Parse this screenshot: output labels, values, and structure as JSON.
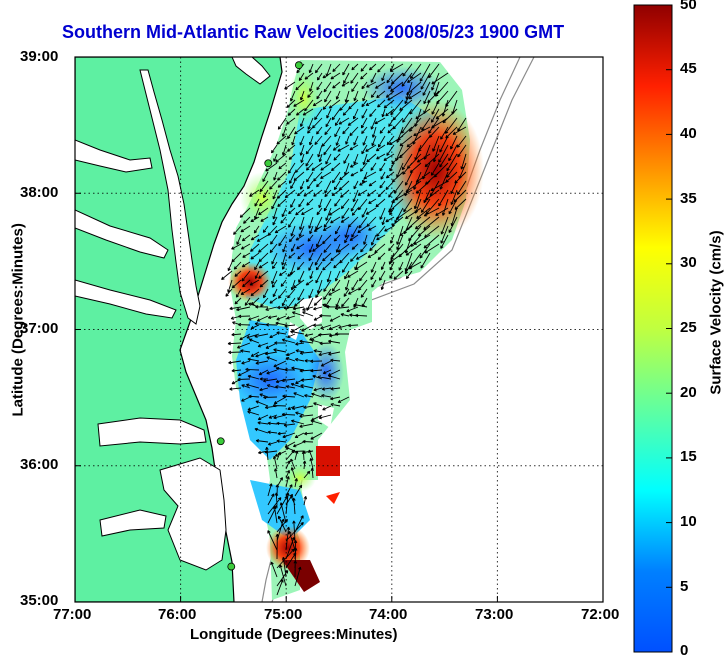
{
  "title": "Southern Mid-Atlantic Raw Velocities 2008/05/23 1900 GMT",
  "axes": {
    "xlabel": "Longitude (Degrees:Minutes)",
    "ylabel": "Latitude (Degrees:Minutes)",
    "xticks": [
      "77:00",
      "76:00",
      "75:00",
      "74:00",
      "73:00",
      "72:00"
    ],
    "yticks": [
      "39:00",
      "38:00",
      "37:00",
      "36:00",
      "35:00"
    ],
    "xlim": [
      -77,
      -72
    ],
    "ylim": [
      35,
      39
    ],
    "grid": true
  },
  "colorbar": {
    "label": "Surface Velocity (cm/s)",
    "ticks": [
      "0",
      "5",
      "10",
      "15",
      "20",
      "25",
      "30",
      "35",
      "40",
      "45",
      "50"
    ],
    "range": [
      0,
      50
    ],
    "colormap": "jet"
  },
  "colors": {
    "land": "#5ef0a2",
    "coastline": "#000000",
    "isobath": "#8c8c8c",
    "arrows": "#000000",
    "title": "#0000d0",
    "radar_sites": "#3ccc3c"
  },
  "radar_sites": [
    {
      "lon": -74.88,
      "lat": 38.94
    },
    {
      "lon": -75.17,
      "lat": 38.22
    },
    {
      "lon": -75.62,
      "lat": 36.18
    },
    {
      "lon": -75.52,
      "lat": 35.26
    }
  ]
}
